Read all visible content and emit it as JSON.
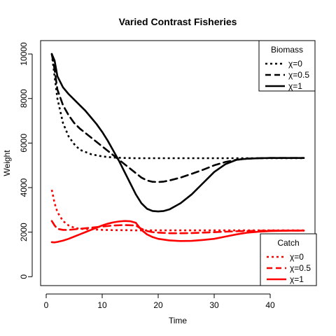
{
  "chart_data": {
    "type": "line",
    "title": "Varied Contrast Fisheries",
    "xlabel": "Time",
    "ylabel": "Weight",
    "xlim": [
      -1,
      48
    ],
    "ylim": [
      -400,
      10600
    ],
    "xticks": [
      0,
      10,
      20,
      30,
      40
    ],
    "yticks": [
      0,
      2000,
      4000,
      6000,
      8000,
      10000
    ],
    "grid": false,
    "legends": [
      {
        "title": "Biomass",
        "placement": "top-right",
        "entries": [
          "χ=0",
          "χ=0.5",
          "χ=1"
        ],
        "color": "#000000"
      },
      {
        "title": "Catch",
        "placement": "bottom-right",
        "entries": [
          "χ=0",
          "χ=0.5",
          "χ=1"
        ],
        "color": "#ff0000"
      }
    ],
    "series": [
      {
        "group": "Biomass",
        "name": "χ=0",
        "color": "#000000",
        "dash": "dotted",
        "x": [
          1,
          1.5,
          2,
          3,
          4,
          5,
          6,
          8,
          10,
          12,
          14,
          16,
          20,
          25,
          30,
          35,
          40,
          46
        ],
        "y": [
          10000,
          9000,
          8000,
          6900,
          6300,
          5950,
          5700,
          5500,
          5400,
          5350,
          5330,
          5320,
          5320,
          5320,
          5320,
          5320,
          5320,
          5320
        ]
      },
      {
        "group": "Biomass",
        "name": "χ=0.5",
        "color": "#000000",
        "dash": "dashed",
        "x": [
          1,
          1.5,
          2,
          3,
          4,
          5,
          6,
          7,
          8,
          9,
          10,
          11,
          12,
          13,
          14,
          15,
          16,
          17,
          18,
          19,
          20,
          21,
          22,
          24,
          26,
          28,
          30,
          32,
          34,
          36,
          38,
          40,
          42,
          44,
          46
        ],
        "y": [
          10000,
          9300,
          8400,
          7700,
          7250,
          6900,
          6650,
          6450,
          6250,
          6050,
          5850,
          5650,
          5450,
          5250,
          5050,
          4850,
          4650,
          4450,
          4320,
          4260,
          4250,
          4270,
          4320,
          4450,
          4620,
          4800,
          5000,
          5150,
          5250,
          5300,
          5320,
          5330,
          5330,
          5330,
          5330
        ]
      },
      {
        "group": "Biomass",
        "name": "χ=1",
        "color": "#000000",
        "dash": "solid",
        "x": [
          1,
          1.5,
          2,
          3,
          4,
          5,
          6,
          7,
          8,
          9,
          10,
          11,
          12,
          13,
          14,
          15,
          16,
          17,
          18,
          19,
          20,
          21,
          22,
          24,
          26,
          28,
          30,
          32,
          34,
          36,
          38,
          40,
          42,
          44,
          46
        ],
        "y": [
          10000,
          9700,
          9000,
          8500,
          8200,
          7950,
          7700,
          7450,
          7150,
          6850,
          6500,
          6100,
          5650,
          5200,
          4700,
          4200,
          3700,
          3300,
          3050,
          2950,
          2930,
          2950,
          3020,
          3300,
          3700,
          4200,
          4700,
          5050,
          5250,
          5300,
          5320,
          5330,
          5330,
          5330,
          5330
        ]
      },
      {
        "group": "Catch",
        "name": "χ=0",
        "color": "#ff0000",
        "dash": "dotted",
        "x": [
          1,
          1.5,
          2,
          3,
          4,
          5,
          6,
          8,
          10,
          12,
          14,
          16,
          20,
          25,
          30,
          35,
          40,
          46
        ],
        "y": [
          3900,
          3300,
          2900,
          2500,
          2300,
          2200,
          2150,
          2130,
          2100,
          2090,
          2090,
          2080,
          2080,
          2080,
          2080,
          2080,
          2080,
          2080
        ]
      },
      {
        "group": "Catch",
        "name": "χ=0.5",
        "color": "#ff0000",
        "dash": "dashed",
        "x": [
          1,
          1.5,
          2,
          3,
          4,
          6,
          8,
          10,
          12,
          14,
          16,
          17,
          18,
          19,
          20,
          22,
          24,
          26,
          28,
          30,
          32,
          34,
          36,
          38,
          40,
          42,
          44,
          46
        ],
        "y": [
          2500,
          2300,
          2150,
          2100,
          2100,
          2150,
          2200,
          2250,
          2300,
          2320,
          2300,
          2150,
          2050,
          2000,
          1980,
          1950,
          1950,
          1960,
          1980,
          2000,
          2020,
          2040,
          2050,
          2060,
          2070,
          2070,
          2070,
          2070
        ]
      },
      {
        "group": "Catch",
        "name": "χ=1",
        "color": "#ff0000",
        "dash": "solid",
        "x": [
          1,
          1.5,
          2,
          3,
          4,
          5,
          6,
          7,
          8,
          9,
          10,
          11,
          12,
          13,
          14,
          15,
          16,
          17,
          18,
          19,
          20,
          22,
          24,
          26,
          28,
          30,
          32,
          34,
          36,
          38,
          40,
          42,
          44,
          46
        ],
        "y": [
          1550,
          1540,
          1560,
          1620,
          1700,
          1800,
          1900,
          2000,
          2100,
          2200,
          2300,
          2380,
          2440,
          2480,
          2500,
          2490,
          2420,
          2100,
          1900,
          1780,
          1700,
          1630,
          1600,
          1610,
          1650,
          1700,
          1800,
          1900,
          1980,
          2020,
          2050,
          2060,
          2070,
          2070
        ]
      }
    ]
  }
}
